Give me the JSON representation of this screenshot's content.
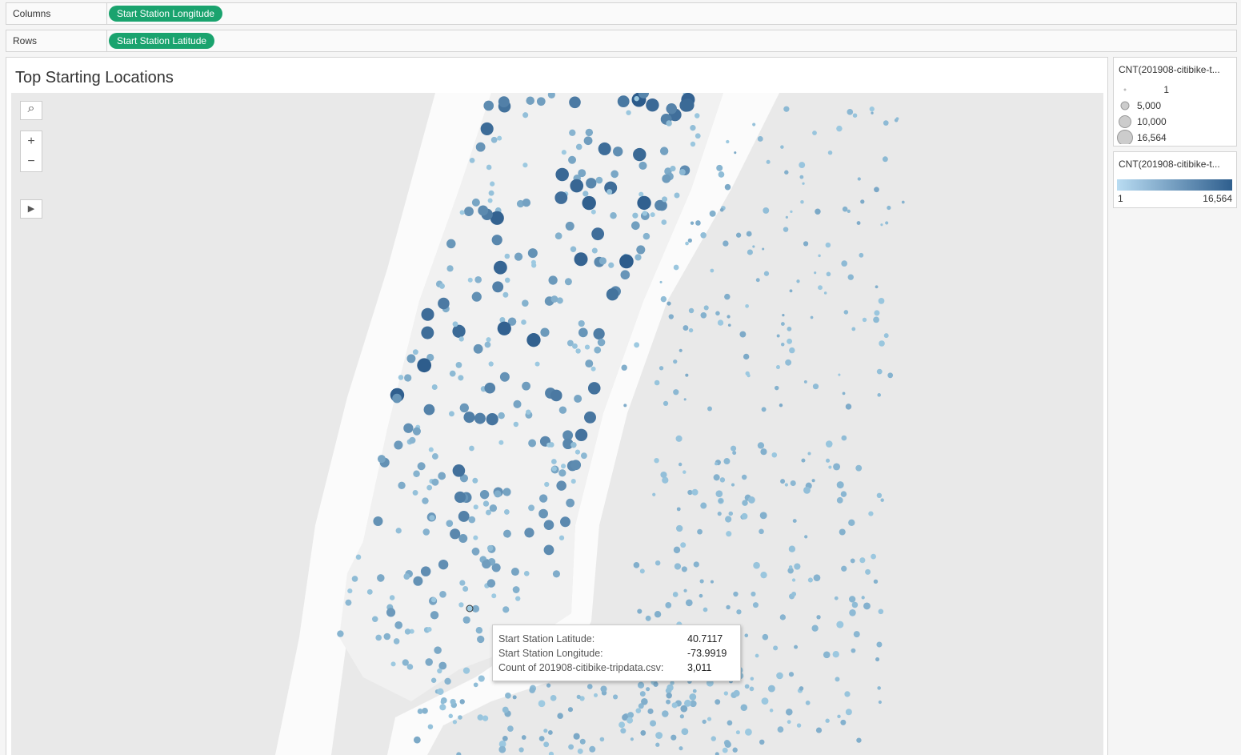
{
  "shelves": {
    "columns": {
      "label": "Columns",
      "pill": "Start Station Longitude"
    },
    "rows": {
      "label": "Rows",
      "pill": "Start Station Latitude"
    }
  },
  "sheet": {
    "title": "Top Starting Locations"
  },
  "size_legend": {
    "title": "CNT(201908-citibike-t...",
    "items": [
      "1",
      "5,000",
      "10,000",
      "16,564"
    ]
  },
  "color_legend": {
    "title": "CNT(201908-citibike-t...",
    "min": "1",
    "max": "16,564"
  },
  "tooltip": {
    "rows": [
      {
        "label": "Start Station Latitude:",
        "value": 40.7117
      },
      {
        "label": "Start Station Longitude:",
        "value": -73.9919
      },
      {
        "label": "Count of 201908-citibike-tripdata.csv:",
        "value": "3,011"
      }
    ]
  }
}
